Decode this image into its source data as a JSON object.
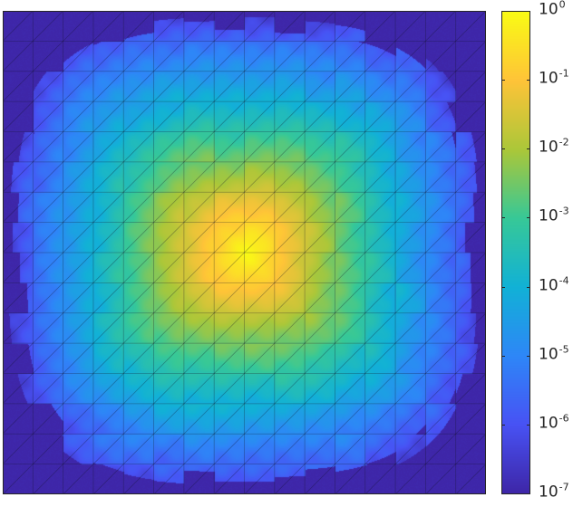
{
  "chart_data": {
    "type": "heatmap",
    "title": "",
    "xlabel": "",
    "ylabel": "",
    "mesh": {
      "divisions_x": 16,
      "divisions_y": 16,
      "element": "triangle"
    },
    "colormap": "parula",
    "color_scale": "log",
    "clim": [
      1e-07,
      1
    ],
    "peak_value": 1,
    "background_value": 1e-07,
    "peak_location": "center",
    "colorbar": {
      "placement": "right",
      "ticks": [
        {
          "base": "10",
          "exp": "0"
        },
        {
          "base": "10",
          "exp": "-1"
        },
        {
          "base": "10",
          "exp": "-2"
        },
        {
          "base": "10",
          "exp": "-3"
        },
        {
          "base": "10",
          "exp": "-4"
        },
        {
          "base": "10",
          "exp": "-5"
        },
        {
          "base": "10",
          "exp": "-6"
        },
        {
          "base": "10",
          "exp": "-7"
        }
      ]
    }
  }
}
